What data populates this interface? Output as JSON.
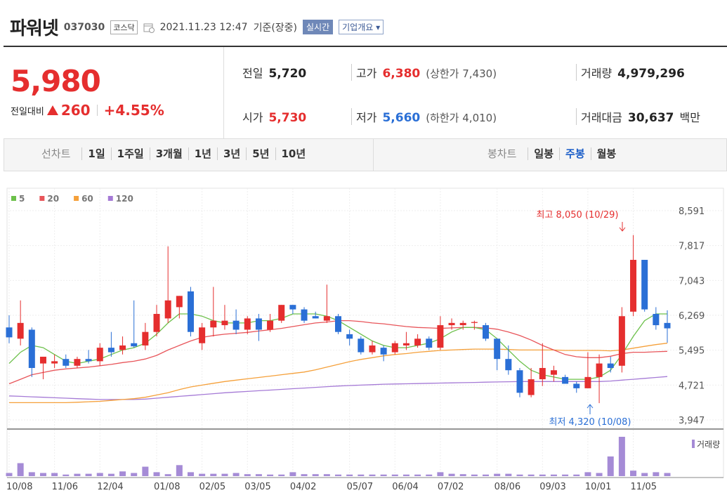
{
  "header": {
    "name": "파워넷",
    "code": "037030",
    "market": "코스닥",
    "datetime": "2021.11.23 12:47",
    "basis": "기준(장중)",
    "realtime": "실시간",
    "overview": "기업개요"
  },
  "quote": {
    "price": "5,980",
    "change_label": "전일대비",
    "change": "260",
    "change_pct": "+4.55%"
  },
  "stats": [
    {
      "label": "전일",
      "value": "5,720"
    },
    {
      "label": "고가",
      "value": "6,380",
      "note": "(상한가 7,430)"
    },
    {
      "label": "거래량",
      "value": "4,979,296"
    },
    {
      "label": "시가",
      "value": "5,730"
    },
    {
      "label": "저가",
      "value": "5,660",
      "note": "(하한가 4,010)"
    },
    {
      "label": "거래대금",
      "value": "30,637",
      "unit": "백만"
    }
  ],
  "tabs": {
    "line_label": "선차트",
    "line_items": [
      "1일",
      "1주일",
      "3개월",
      "1년",
      "3년",
      "5년",
      "10년"
    ],
    "candle_label": "봉차트",
    "candle_items": [
      "일봉",
      "주봉",
      "월봉"
    ],
    "active": "주봉"
  },
  "chart_data": {
    "type": "candlestick",
    "categories": [
      "10/08",
      null,
      null,
      null,
      "11/06",
      null,
      null,
      null,
      "12/04",
      null,
      null,
      null,
      null,
      "01/08",
      null,
      null,
      null,
      "02/05",
      null,
      null,
      null,
      "03/05",
      null,
      null,
      null,
      "04/02",
      null,
      null,
      null,
      null,
      "05/07",
      null,
      null,
      null,
      "06/04",
      null,
      null,
      null,
      "07/02",
      null,
      null,
      null,
      null,
      "08/06",
      null,
      null,
      null,
      "09/03",
      null,
      null,
      null,
      "10/01",
      null,
      null,
      null,
      "11/05",
      null,
      null,
      null
    ],
    "open": [
      6000,
      5750,
      5950,
      5200,
      5200,
      5300,
      5150,
      5300,
      5250,
      5550,
      5500,
      5650,
      5600,
      5900,
      6200,
      6450,
      6800,
      5650,
      6000,
      6050,
      6150,
      5950,
      6200,
      5950,
      6150,
      6500,
      6400,
      6250,
      6150,
      6250,
      5850,
      5750,
      5450,
      5550,
      5450,
      5600,
      5600,
      5750,
      5550,
      6050,
      6050,
      6100,
      6050,
      5750,
      5300,
      5050,
      4500,
      4850,
      4950,
      4900,
      4750,
      4650,
      4900,
      5200,
      5150,
      6350,
      7500,
      6300,
      6100
    ],
    "high": [
      6270,
      6600,
      6000,
      5350,
      5400,
      5400,
      5350,
      5500,
      5650,
      5900,
      5800,
      6600,
      6100,
      6500,
      7800,
      6700,
      6900,
      6100,
      6900,
      6500,
      6400,
      6250,
      6300,
      6300,
      6500,
      6500,
      6450,
      6350,
      6950,
      6300,
      5950,
      5800,
      5700,
      5600,
      5700,
      5900,
      5850,
      5800,
      6250,
      6200,
      6150,
      6150,
      6100,
      5750,
      5600,
      5100,
      5100,
      5650,
      5150,
      4950,
      4800,
      5450,
      5400,
      5350,
      6450,
      8050,
      7500,
      6450,
      6380
    ],
    "low": [
      5650,
      5600,
      4900,
      4850,
      5100,
      5100,
      5100,
      5200,
      5150,
      5350,
      5400,
      5550,
      5500,
      5800,
      6100,
      6200,
      5800,
      5500,
      5800,
      5950,
      5850,
      5850,
      5700,
      5900,
      6100,
      6300,
      6100,
      6200,
      6100,
      5850,
      5600,
      5400,
      5400,
      5250,
      5400,
      5500,
      5550,
      5500,
      5500,
      5950,
      5950,
      5950,
      5700,
      5050,
      4950,
      4450,
      4450,
      4700,
      4800,
      4750,
      4550,
      4650,
      4320,
      5000,
      5000,
      6250,
      6350,
      5950,
      5660
    ],
    "close": [
      5780,
      6100,
      5100,
      5350,
      5250,
      5150,
      5300,
      5250,
      5550,
      5450,
      5600,
      5580,
      5900,
      6300,
      6600,
      6700,
      5900,
      6000,
      6150,
      6150,
      5950,
      6200,
      5950,
      6150,
      6500,
      6400,
      6150,
      6200,
      6250,
      5900,
      5750,
      5450,
      5600,
      5400,
      5650,
      5650,
      5750,
      5550,
      6050,
      6100,
      6100,
      6120,
      5750,
      5300,
      5050,
      4550,
      4850,
      5100,
      5050,
      4750,
      4650,
      4900,
      5200,
      5100,
      6250,
      7500,
      6400,
      6050,
      5980
    ],
    "up_color": "#e52e2e",
    "down_color": "#2a6fd6",
    "series": [
      {
        "name": "5",
        "color": "#6cc04a",
        "values": [
          5200,
          5450,
          5600,
          5550,
          5400,
          5250,
          5200,
          5250,
          5300,
          5400,
          5500,
          5550,
          5650,
          5850,
          6100,
          6300,
          6300,
          6250,
          6150,
          6100,
          6100,
          6100,
          6150,
          6150,
          6200,
          6300,
          6300,
          6300,
          6250,
          6150,
          6000,
          5850,
          5700,
          5600,
          5550,
          5550,
          5600,
          5650,
          5750,
          5900,
          6000,
          6000,
          5950,
          5750,
          5500,
          5250,
          5050,
          4950,
          4900,
          4850,
          4850,
          4850,
          4900,
          5050,
          5400,
          5800,
          6150,
          6300,
          6300
        ]
      },
      {
        "name": "20",
        "color": "#e8555a",
        "values": [
          4750,
          4850,
          4950,
          5000,
          5050,
          5080,
          5100,
          5120,
          5150,
          5180,
          5220,
          5250,
          5300,
          5380,
          5500,
          5600,
          5700,
          5780,
          5820,
          5850,
          5870,
          5890,
          5920,
          5950,
          5980,
          6020,
          6060,
          6100,
          6120,
          6150,
          6150,
          6130,
          6100,
          6080,
          6050,
          6020,
          6000,
          5990,
          5980,
          5990,
          6000,
          6000,
          5990,
          5960,
          5900,
          5820,
          5720,
          5600,
          5500,
          5400,
          5350,
          5330,
          5330,
          5360,
          5420,
          5450,
          5450,
          5460,
          5470
        ]
      },
      {
        "name": "60",
        "color": "#f5a03a",
        "values": [
          4330,
          4330,
          4330,
          4330,
          4330,
          4330,
          4340,
          4350,
          4360,
          4380,
          4400,
          4420,
          4450,
          4500,
          4550,
          4620,
          4680,
          4720,
          4760,
          4800,
          4830,
          4860,
          4890,
          4920,
          4950,
          4980,
          5010,
          5060,
          5120,
          5180,
          5240,
          5290,
          5330,
          5370,
          5400,
          5420,
          5450,
          5470,
          5490,
          5500,
          5510,
          5520,
          5520,
          5520,
          5510,
          5500,
          5500,
          5500,
          5500,
          5490,
          5490,
          5490,
          5490,
          5480,
          5500,
          5540,
          5580,
          5620,
          5650
        ]
      },
      {
        "name": "120",
        "color": "#a57ad6",
        "values": [
          4480,
          4470,
          4460,
          4450,
          4440,
          4430,
          4420,
          4410,
          4400,
          4400,
          4400,
          4400,
          4410,
          4430,
          4450,
          4470,
          4490,
          4510,
          4530,
          4550,
          4565,
          4580,
          4595,
          4610,
          4625,
          4640,
          4655,
          4670,
          4685,
          4700,
          4710,
          4720,
          4730,
          4740,
          4745,
          4750,
          4755,
          4760,
          4765,
          4770,
          4775,
          4780,
          4785,
          4790,
          4795,
          4800,
          4800,
          4800,
          4800,
          4800,
          4800,
          4800,
          4800,
          4810,
          4830,
          4850,
          4870,
          4890,
          4910
        ]
      }
    ],
    "ylim": [
      3760,
      9090
    ],
    "yticks": [
      {
        "value": 8591,
        "label": "8,591"
      },
      {
        "value": 7817,
        "label": "7,817"
      },
      {
        "value": 7043,
        "label": "7,043"
      },
      {
        "value": 6269,
        "label": "6,269"
      },
      {
        "value": 5495,
        "label": "5,495"
      },
      {
        "value": 4721,
        "label": "4,721"
      },
      {
        "value": 3947,
        "label": "3,947"
      }
    ],
    "grid": true,
    "annotations": {
      "high": "최고 8,050 (10/29)",
      "low": "최저 4,320 (10/08)"
    },
    "volume": {
      "label": "거래량",
      "color": "#a58bd6",
      "ylim": [
        0,
        100
      ],
      "values": [
        8,
        33,
        10,
        8,
        8,
        4,
        6,
        6,
        8,
        6,
        12,
        8,
        24,
        10,
        5,
        28,
        10,
        6,
        6,
        6,
        8,
        5,
        5,
        4,
        4,
        10,
        5,
        5,
        5,
        4,
        4,
        4,
        4,
        4,
        4,
        4,
        4,
        4,
        10,
        6,
        5,
        4,
        4,
        6,
        6,
        4,
        4,
        4,
        4,
        4,
        4,
        10,
        8,
        50,
        100,
        14,
        8,
        10,
        8
      ]
    }
  }
}
